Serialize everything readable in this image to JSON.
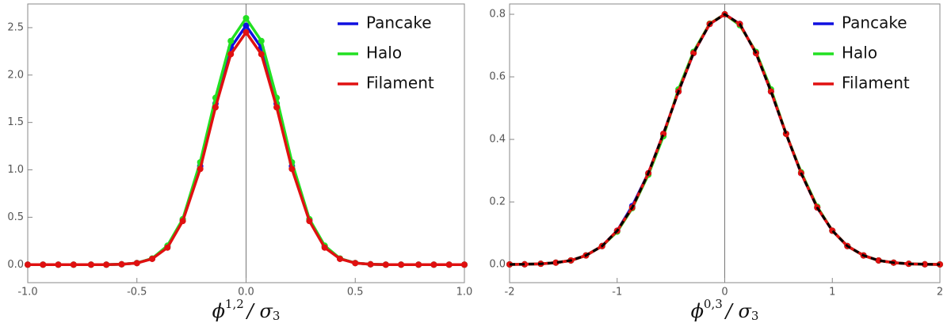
{
  "chart_data": [
    {
      "type": "line",
      "legend": "top-right",
      "grid": false,
      "xlabel": [
        "ϕ",
        "1,2",
        "/ σ",
        "3"
      ],
      "xlim": [
        -1,
        1
      ],
      "ylim": [
        -0.19,
        2.75
      ],
      "xticks": [
        {
          "value": -1,
          "label": "-1.0"
        },
        -0.5,
        {
          "value": 0,
          "label": "0.0"
        },
        0.5,
        {
          "value": 1,
          "label": "1.0"
        }
      ],
      "yticks": [
        {
          "value": 0,
          "label": "0.0"
        },
        0.5,
        {
          "value": 1,
          "label": "1.0"
        },
        1.5,
        {
          "value": 2,
          "label": "2.0"
        },
        2.5
      ],
      "x": [
        -1,
        -0.93,
        -0.86,
        -0.79,
        -0.71,
        -0.64,
        -0.57,
        -0.5,
        -0.43,
        -0.36,
        -0.29,
        -0.21,
        -0.14,
        -0.07,
        0,
        0.07,
        0.14,
        0.21,
        0.29,
        0.36,
        0.43,
        0.5,
        0.57,
        0.64,
        0.71,
        0.79,
        0.86,
        0.93,
        1
      ],
      "series": [
        {
          "name": "Pancake",
          "color": "#1010e0",
          "values": [
            0,
            0,
            0,
            0,
            0,
            0,
            0.004,
            0.017,
            0.063,
            0.19,
            0.47,
            1.04,
            1.7,
            2.29,
            2.52,
            2.29,
            1.7,
            1.04,
            0.47,
            0.19,
            0.063,
            0.017,
            0.004,
            0,
            0,
            0,
            0,
            0,
            0
          ]
        },
        {
          "name": "Halo",
          "color": "#22e022",
          "values": [
            0,
            0,
            0,
            0,
            0,
            0,
            0.004,
            0.017,
            0.065,
            0.2,
            0.48,
            1.08,
            1.76,
            2.36,
            2.6,
            2.36,
            1.76,
            1.08,
            0.48,
            0.2,
            0.065,
            0.017,
            0.004,
            0,
            0,
            0,
            0,
            0,
            0
          ]
        },
        {
          "name": "Filament",
          "color": "#e01010",
          "values": [
            0,
            0,
            0,
            0,
            0,
            0,
            0.004,
            0.016,
            0.061,
            0.18,
            0.46,
            1.01,
            1.66,
            2.22,
            2.45,
            2.22,
            1.66,
            1.01,
            0.46,
            0.18,
            0.061,
            0.016,
            0.004,
            0,
            0,
            0,
            0,
            0,
            0
          ]
        }
      ]
    },
    {
      "type": "line",
      "legend": "top-right",
      "grid": false,
      "xlabel": [
        "ϕ",
        "0,3",
        "/ σ",
        "3"
      ],
      "xlim": [
        -2,
        2
      ],
      "ylim": [
        -0.058,
        0.833
      ],
      "xticks": [
        -2,
        -1,
        0,
        1,
        2
      ],
      "yticks": [
        {
          "value": 0,
          "label": "0.0"
        },
        0.2,
        0.4,
        0.6,
        0.8
      ],
      "x": [
        -2,
        -1.86,
        -1.71,
        -1.57,
        -1.43,
        -1.29,
        -1.14,
        -1,
        -0.86,
        -0.71,
        -0.57,
        -0.43,
        -0.29,
        -0.14,
        0,
        0.14,
        0.29,
        0.43,
        0.57,
        0.71,
        0.86,
        1,
        1.14,
        1.29,
        1.43,
        1.57,
        1.71,
        1.86,
        2
      ],
      "series": [
        {
          "name": "Pancake",
          "color": "#1010e0",
          "values": [
            0.0003,
            0.0008,
            0.0023,
            0.006,
            0.013,
            0.029,
            0.059,
            0.108,
            0.187,
            0.292,
            0.418,
            0.553,
            0.676,
            0.769,
            0.8,
            0.769,
            0.676,
            0.553,
            0.418,
            0.292,
            0.182,
            0.108,
            0.059,
            0.029,
            0.013,
            0.006,
            0.0023,
            0.0008,
            0.0003
          ]
        },
        {
          "name": "Halo",
          "color": "#22e022",
          "values": [
            0.0003,
            0.0008,
            0.0023,
            0.006,
            0.013,
            0.029,
            0.059,
            0.105,
            0.18,
            0.287,
            0.41,
            0.56,
            0.68,
            0.77,
            0.8,
            0.765,
            0.68,
            0.56,
            0.418,
            0.295,
            0.185,
            0.108,
            0.059,
            0.029,
            0.013,
            0.006,
            0.0023,
            0.0008,
            0.0003
          ]
        },
        {
          "name": "Filament",
          "color": "#e01010",
          "values": [
            0.0003,
            0.0008,
            0.0023,
            0.006,
            0.013,
            0.029,
            0.059,
            0.108,
            0.182,
            0.292,
            0.418,
            0.553,
            0.676,
            0.769,
            0.8,
            0.769,
            0.676,
            0.553,
            0.418,
            0.292,
            0.182,
            0.108,
            0.059,
            0.029,
            0.013,
            0.006,
            0.0023,
            0.0008,
            0.0003
          ]
        },
        {
          "color": "#000000",
          "dash": true,
          "values": [
            0.0003,
            0.0008,
            0.0023,
            0.006,
            0.013,
            0.029,
            0.059,
            0.108,
            0.182,
            0.292,
            0.418,
            0.553,
            0.676,
            0.769,
            0.8,
            0.769,
            0.676,
            0.553,
            0.418,
            0.292,
            0.182,
            0.108,
            0.059,
            0.029,
            0.013,
            0.006,
            0.0023,
            0.0008,
            0.0003
          ]
        }
      ]
    }
  ]
}
